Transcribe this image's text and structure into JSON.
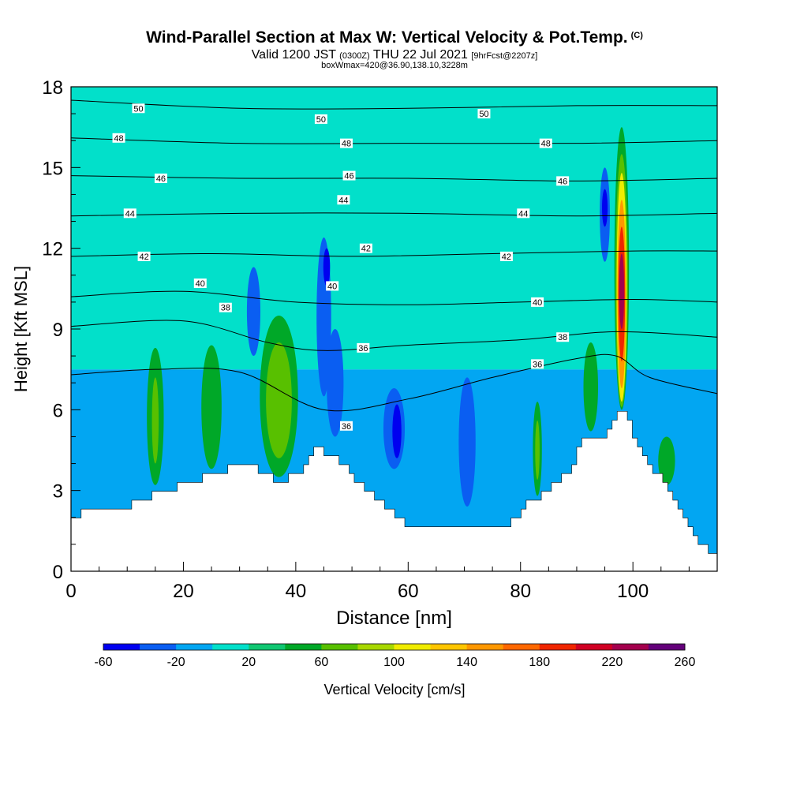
{
  "title": "Wind-Parallel Section at Max W: Vertical Velocity & Pot.Temp.",
  "title_mark": "(C)",
  "subtitle": {
    "valid": "Valid 1200 JST",
    "utc": "(0300Z)",
    "date": "THU 22 Jul 2021",
    "fcst": "[9hrFcst@2207z]"
  },
  "subtitle2": "boxWmax=420@36.90,138.10,3228m",
  "chart_data": {
    "type": "heatmap",
    "xlabel": "Distance [nm]",
    "ylabel": "Height [Kft MSL]",
    "xlim": [
      0,
      115
    ],
    "ylim": [
      0,
      18
    ],
    "x_ticks": [
      "0",
      "20",
      "40",
      "60",
      "80",
      "100"
    ],
    "y_ticks": [
      "0",
      "3",
      "6",
      "9",
      "12",
      "15",
      "18"
    ],
    "colorbar": {
      "label": "Vertical Velocity [cm/s]",
      "tick_labels": [
        "-60",
        "-20",
        "20",
        "60",
        "100",
        "140",
        "180",
        "220",
        "260"
      ],
      "levels": [
        -60,
        -40,
        -20,
        0,
        20,
        40,
        60,
        80,
        100,
        120,
        140,
        160,
        180,
        200,
        220,
        240,
        260
      ],
      "colors": [
        "#0000f0",
        "#0a5ef2",
        "#02a6f2",
        "#02e0ca",
        "#10c772",
        "#00a828",
        "#58c000",
        "#a8d800",
        "#f0ec00",
        "#ffc600",
        "#ff9800",
        "#ff6800",
        "#f02600",
        "#d00024",
        "#a4004e",
        "#64007a"
      ]
    },
    "terrain_height_kft": [
      [
        0,
        2.0
      ],
      [
        2,
        2.3
      ],
      [
        9,
        2.3
      ],
      [
        13,
        2.7
      ],
      [
        17,
        3.0
      ],
      [
        20,
        3.3
      ],
      [
        26,
        3.6
      ],
      [
        29,
        4.0
      ],
      [
        33,
        3.8
      ],
      [
        37,
        3.3
      ],
      [
        40,
        3.6
      ],
      [
        43,
        4.6
      ],
      [
        47,
        4.3
      ],
      [
        50,
        3.5
      ],
      [
        55,
        2.6
      ],
      [
        60,
        1.6
      ],
      [
        65,
        1.8
      ],
      [
        72,
        1.5
      ],
      [
        77,
        1.6
      ],
      [
        80,
        2.3
      ],
      [
        84,
        3.0
      ],
      [
        88,
        3.6
      ],
      [
        91,
        5.0
      ],
      [
        95,
        5.0
      ],
      [
        97,
        6.0
      ],
      [
        99,
        5.6
      ],
      [
        101,
        4.4
      ],
      [
        104,
        3.6
      ],
      [
        106,
        3.0
      ],
      [
        109,
        2.0
      ],
      [
        111,
        1.2
      ],
      [
        113,
        0.8
      ],
      [
        115,
        0.8
      ]
    ],
    "background_velocity_cm_s": [
      {
        "y_range": [
          0,
          7.5
        ],
        "velocity": -20
      },
      {
        "y_range": [
          7.5,
          18
        ],
        "velocity": 0
      }
    ],
    "vertical_velocity_features": [
      {
        "x": 15,
        "y_bottom": 3.2,
        "y_top": 8.3,
        "half_width_nm": 1.5,
        "velocity": 40
      },
      {
        "x": 15,
        "y_bottom": 4.0,
        "y_top": 7.2,
        "half_width_nm": 0.6,
        "velocity": 60
      },
      {
        "x": 25,
        "y_bottom": 3.8,
        "y_top": 8.4,
        "half_width_nm": 1.8,
        "velocity": 40
      },
      {
        "x": 32.5,
        "y_bottom": 8.0,
        "y_top": 11.3,
        "half_width_nm": 1.2,
        "velocity": -40
      },
      {
        "x": 37,
        "y_bottom": 3.5,
        "y_top": 9.5,
        "half_width_nm": 3.4,
        "velocity": 40
      },
      {
        "x": 37,
        "y_bottom": 4.2,
        "y_top": 8.5,
        "half_width_nm": 2.3,
        "velocity": 60
      },
      {
        "x": 45,
        "y_bottom": 6.5,
        "y_top": 12.4,
        "half_width_nm": 1.3,
        "velocity": -40
      },
      {
        "x": 47,
        "y_bottom": 5.0,
        "y_top": 9.0,
        "half_width_nm": 1.5,
        "velocity": -40
      },
      {
        "x": 45.5,
        "y_bottom": 10.6,
        "y_top": 12.0,
        "half_width_nm": 0.6,
        "velocity": -60
      },
      {
        "x": 57.5,
        "y_bottom": 3.8,
        "y_top": 6.8,
        "half_width_nm": 1.9,
        "velocity": -40
      },
      {
        "x": 58,
        "y_bottom": 4.2,
        "y_top": 6.2,
        "half_width_nm": 0.8,
        "velocity": -60
      },
      {
        "x": 70.5,
        "y_bottom": 2.4,
        "y_top": 7.2,
        "half_width_nm": 1.5,
        "velocity": -40
      },
      {
        "x": 83,
        "y_bottom": 2.8,
        "y_top": 6.3,
        "half_width_nm": 0.8,
        "velocity": 40
      },
      {
        "x": 83,
        "y_bottom": 3.4,
        "y_top": 5.6,
        "half_width_nm": 0.4,
        "velocity": 60
      },
      {
        "x": 92.5,
        "y_bottom": 5.2,
        "y_top": 8.5,
        "half_width_nm": 1.3,
        "velocity": 40
      },
      {
        "x": 95,
        "y_bottom": 11.5,
        "y_top": 15.0,
        "half_width_nm": 0.9,
        "velocity": -40
      },
      {
        "x": 95,
        "y_bottom": 12.8,
        "y_top": 14.2,
        "half_width_nm": 0.5,
        "velocity": -60
      },
      {
        "x": 98,
        "y_bottom": 6.0,
        "y_top": 16.5,
        "half_width_nm": 1.3,
        "velocity": 40
      },
      {
        "x": 98,
        "y_bottom": 6.1,
        "y_top": 15.5,
        "half_width_nm": 1.1,
        "velocity": 60
      },
      {
        "x": 98,
        "y_bottom": 6.3,
        "y_top": 14.8,
        "half_width_nm": 0.9,
        "velocity": 100
      },
      {
        "x": 98,
        "y_bottom": 6.8,
        "y_top": 13.8,
        "half_width_nm": 0.75,
        "velocity": 140
      },
      {
        "x": 98,
        "y_bottom": 7.8,
        "y_top": 12.8,
        "half_width_nm": 0.6,
        "velocity": 180
      },
      {
        "x": 98,
        "y_bottom": 9.0,
        "y_top": 11.8,
        "half_width_nm": 0.45,
        "velocity": 220
      },
      {
        "x": 106,
        "y_bottom": 3.2,
        "y_top": 5.0,
        "half_width_nm": 1.5,
        "velocity": 40
      }
    ],
    "potential_temperature_isentropes": [
      {
        "label": "36",
        "points": [
          [
            0,
            7.3
          ],
          [
            15,
            7.5
          ],
          [
            30,
            7.4
          ],
          [
            45,
            6.0
          ],
          [
            60,
            6.4
          ],
          [
            75,
            7.2
          ],
          [
            90,
            7.9
          ],
          [
            97,
            8.0
          ],
          [
            103,
            7.2
          ],
          [
            115,
            6.6
          ]
        ]
      },
      {
        "label": "38",
        "points": [
          [
            0,
            9.1
          ],
          [
            20,
            9.3
          ],
          [
            35,
            8.5
          ],
          [
            45,
            8.2
          ],
          [
            60,
            8.4
          ],
          [
            80,
            8.6
          ],
          [
            97,
            8.9
          ],
          [
            115,
            8.7
          ]
        ]
      },
      {
        "label": "40",
        "points": [
          [
            0,
            10.2
          ],
          [
            20,
            10.4
          ],
          [
            40,
            10.0
          ],
          [
            60,
            9.9
          ],
          [
            80,
            10.0
          ],
          [
            100,
            10.1
          ],
          [
            115,
            10.0
          ]
        ]
      },
      {
        "label": "42",
        "points": [
          [
            0,
            11.7
          ],
          [
            25,
            11.8
          ],
          [
            50,
            11.7
          ],
          [
            75,
            11.8
          ],
          [
            100,
            11.9
          ],
          [
            115,
            11.9
          ]
        ]
      },
      {
        "label": "44",
        "points": [
          [
            0,
            13.2
          ],
          [
            30,
            13.3
          ],
          [
            60,
            13.3
          ],
          [
            90,
            13.2
          ],
          [
            115,
            13.3
          ]
        ]
      },
      {
        "label": "46",
        "points": [
          [
            0,
            14.7
          ],
          [
            30,
            14.6
          ],
          [
            60,
            14.6
          ],
          [
            90,
            14.5
          ],
          [
            115,
            14.6
          ]
        ]
      },
      {
        "label": "48",
        "points": [
          [
            0,
            16.1
          ],
          [
            30,
            15.9
          ],
          [
            60,
            15.9
          ],
          [
            90,
            15.9
          ],
          [
            115,
            16.0
          ]
        ]
      },
      {
        "label": "50",
        "points": [
          [
            0,
            17.5
          ],
          [
            30,
            17.2
          ],
          [
            60,
            17.2
          ],
          [
            90,
            17.3
          ],
          [
            115,
            17.3
          ]
        ]
      }
    ],
    "contour_labels": [
      {
        "text": "50",
        "x": 12,
        "y": 17.2
      },
      {
        "text": "50",
        "x": 44.5,
        "y": 16.8
      },
      {
        "text": "50",
        "x": 73.5,
        "y": 17.0
      },
      {
        "text": "48",
        "x": 8.5,
        "y": 16.1
      },
      {
        "text": "48",
        "x": 49,
        "y": 15.9
      },
      {
        "text": "48",
        "x": 84.5,
        "y": 15.9
      },
      {
        "text": "46",
        "x": 16,
        "y": 14.6
      },
      {
        "text": "46",
        "x": 49.5,
        "y": 14.7
      },
      {
        "text": "46",
        "x": 87.5,
        "y": 14.5
      },
      {
        "text": "44",
        "x": 10.5,
        "y": 13.3
      },
      {
        "text": "44",
        "x": 48.5,
        "y": 13.8
      },
      {
        "text": "44",
        "x": 80.5,
        "y": 13.3
      },
      {
        "text": "42",
        "x": 13,
        "y": 11.7
      },
      {
        "text": "42",
        "x": 52.5,
        "y": 12.0
      },
      {
        "text": "42",
        "x": 77.5,
        "y": 11.7
      },
      {
        "text": "40",
        "x": 23,
        "y": 10.7
      },
      {
        "text": "40",
        "x": 46.5,
        "y": 10.6
      },
      {
        "text": "40",
        "x": 83,
        "y": 10.0
      },
      {
        "text": "38",
        "x": 27.5,
        "y": 9.8
      },
      {
        "text": "38",
        "x": 87.5,
        "y": 8.7
      },
      {
        "text": "36",
        "x": 52,
        "y": 8.3
      },
      {
        "text": "36",
        "x": 83,
        "y": 7.7
      },
      {
        "text": "36",
        "x": 49,
        "y": 5.4
      }
    ]
  }
}
